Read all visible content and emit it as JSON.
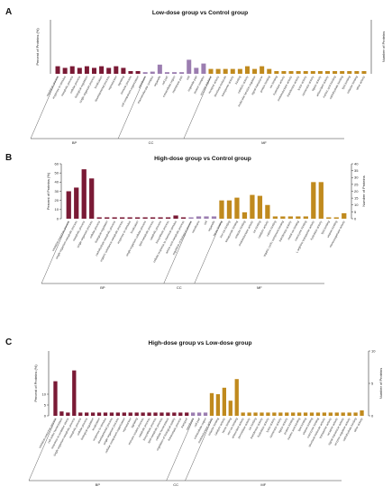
{
  "colors": {
    "BP": "#7a1a35",
    "CC": "#9b7db0",
    "MF": "#c08a1e",
    "axis": "#333333"
  },
  "panels": [
    {
      "label": "A",
      "title": "Low-dose group vs Control group"
    },
    {
      "label": "B",
      "title": "High-dose group vs Control group"
    },
    {
      "label": "C",
      "title": "High-dose group vs Low-dose group"
    }
  ],
  "chart_data": [
    {
      "type": "bar",
      "title": "Low-dose group vs Control group",
      "ylabel": "Percent of Proteins (%)",
      "y2label": "Number of Proteins",
      "groups": [
        "BP",
        "CC",
        "MF"
      ],
      "yticks": [],
      "y2ticks": [],
      "ylim": [
        0,
        100
      ],
      "categories": [
        "regulation process",
        "response to stimulus",
        "metabolic process",
        "cellular process",
        "biological regulation",
        "single-organism process",
        "localization",
        "developmental process",
        "reproduction",
        "signaling",
        "immune process",
        "cell component organization",
        "membrane",
        "macromolecular complex",
        "organelle",
        "cell part",
        "extracellular region",
        "membrane part",
        "cell",
        "organelle part",
        "protein complex",
        "enzyme regulator",
        "receptor activity",
        "structural molecule",
        "transporter activity",
        "binding",
        "catalytic activity",
        "molecular function regulator",
        "signal transducer",
        "protein binding",
        "ion binding",
        "hydrolase activity",
        "oxidoreductase activity",
        "transferase activity",
        "lyase activity",
        "isomerase activity",
        "ligase activity",
        "antioxidant activity",
        "nucleic acid binding",
        "carbohydrate binding",
        "lipid binding",
        "cofactor binding",
        "other activity"
      ],
      "category_group": [
        "BP",
        "BP",
        "BP",
        "BP",
        "BP",
        "BP",
        "BP",
        "BP",
        "BP",
        "BP",
        "BP",
        "BP",
        "CC",
        "CC",
        "CC",
        "CC",
        "CC",
        "CC",
        "CC",
        "CC",
        "CC",
        "MF",
        "MF",
        "MF",
        "MF",
        "MF",
        "MF",
        "MF",
        "MF",
        "MF",
        "MF",
        "MF",
        "MF",
        "MF",
        "MF",
        "MF",
        "MF",
        "MF",
        "MF",
        "MF",
        "MF",
        "MF",
        "MF"
      ],
      "values": [
        14,
        11,
        14,
        11,
        14,
        11,
        14,
        11,
        14,
        11,
        5,
        5,
        3,
        4,
        17,
        3,
        3,
        3,
        26,
        11,
        19,
        9,
        9,
        9,
        9,
        9,
        14,
        9,
        14,
        9,
        5,
        5,
        5,
        5,
        5,
        5,
        5,
        5,
        5,
        5,
        5,
        5,
        5
      ]
    },
    {
      "type": "bar",
      "title": "High-dose group vs Control group",
      "ylabel": "Percent of Proteins (%)",
      "y2label": "Number of Proteins",
      "groups": [
        "BP",
        "CC",
        "MF"
      ],
      "yticks": [
        0,
        10,
        20,
        30,
        40,
        50,
        60
      ],
      "y2ticks": [
        0,
        5,
        10,
        15,
        20,
        25,
        30,
        35,
        40
      ],
      "ylim": [
        0,
        60
      ],
      "categories": [
        "oxidation-reduction process",
        "single-organism metabolic process",
        "metabolic process",
        "single-organism process",
        "cellular process",
        "biological regulation",
        "carbohydrate metabolic process",
        "organic substance metabolic process",
        "response to stimulus",
        "localization",
        "single-organism cellular process",
        "lipid metabolic process",
        "catabolic process",
        "biosynthetic process",
        "cellular response to chemical stimulus",
        "amino acid metabolic process",
        "regulation of biological process",
        "membrane",
        "cell",
        "organelle",
        "heme binding",
        "iron ion binding",
        "tetrapyrrole binding",
        "cofactor binding",
        "oxidoreductase activity",
        "ion binding",
        "catalytic activity",
        "cation binding",
        "organic cyclic compound binding",
        "transferase activity",
        "metal ion binding",
        "coenzyme binding",
        "L-arginine transporter activity",
        "hydrolase activity",
        "lipid binding",
        "vitamin binding",
        "monooxygenase activity"
      ],
      "category_group": [
        "BP",
        "BP",
        "BP",
        "BP",
        "BP",
        "BP",
        "BP",
        "BP",
        "BP",
        "BP",
        "BP",
        "BP",
        "BP",
        "BP",
        "BP",
        "BP",
        "CC",
        "CC",
        "CC",
        "CC",
        "MF",
        "MF",
        "MF",
        "MF",
        "MF",
        "MF",
        "MF",
        "MF",
        "MF",
        "MF",
        "MF",
        "MF",
        "MF",
        "MF",
        "MF",
        "MF",
        "MF"
      ],
      "values": [
        30,
        34,
        54,
        44,
        1.5,
        1.5,
        1.5,
        1.5,
        1.5,
        1.5,
        1.5,
        1.5,
        1.5,
        1.5,
        3.5,
        1.5,
        1.5,
        2.5,
        2.5,
        2.5,
        20,
        20,
        23,
        7,
        26,
        25,
        15,
        2.5,
        2.5,
        2.5,
        2.5,
        2.5,
        40,
        40,
        1.5,
        1.5,
        6
      ]
    },
    {
      "type": "bar",
      "title": "High-dose group vs Low-dose group",
      "ylabel": "Percent of Proteins (%)",
      "y2label": "Number of Proteins",
      "groups": [
        "BP",
        "CC",
        "MF"
      ],
      "yticks": [
        0,
        5,
        10
      ],
      "y2ticks": [
        0,
        5,
        10
      ],
      "ylim": [
        0,
        30
      ],
      "categories": [
        "oxidation-reduction process",
        "cell redox homeostasis",
        "response to oxidative stress",
        "single-organism metabolic process",
        "metabolic process",
        "cellular process",
        "biological regulation",
        "localization",
        "response to stimulus",
        "developmental process",
        "single-organism process",
        "cellular component organization",
        "reproduction",
        "signaling",
        "immune system process",
        "catabolic process",
        "biosynthetic process",
        "lipid metabolic process",
        "cellular homeostasis",
        "regulation of biological quality",
        "homeostatic process",
        "transport",
        "membrane",
        "cell part",
        "extracellular region",
        "oxidoreductase activity",
        "cofactor binding",
        "catalytic activity",
        "heme binding",
        "iron ion binding",
        "antioxidant activity",
        "peroxidase activity",
        "ion binding",
        "transferase activity",
        "hydrolase activity",
        "lyase activity",
        "isomerase activity",
        "ligase activity",
        "protein binding",
        "nucleic acid binding",
        "lipid binding",
        "vitamin binding",
        "coenzyme binding",
        "structural molecule activity",
        "transporter activity",
        "receptor activity",
        "signal transducer activity",
        "enzyme regulator activity",
        "carbohydrate binding",
        "other activity"
      ],
      "category_group": [
        "BP",
        "BP",
        "BP",
        "BP",
        "BP",
        "BP",
        "BP",
        "BP",
        "BP",
        "BP",
        "BP",
        "BP",
        "BP",
        "BP",
        "BP",
        "BP",
        "BP",
        "BP",
        "BP",
        "BP",
        "BP",
        "BP",
        "CC",
        "CC",
        "CC",
        "MF",
        "MF",
        "MF",
        "MF",
        "MF",
        "MF",
        "MF",
        "MF",
        "MF",
        "MF",
        "MF",
        "MF",
        "MF",
        "MF",
        "MF",
        "MF",
        "MF",
        "MF",
        "MF",
        "MF",
        "MF",
        "MF",
        "MF",
        "MF",
        "MF"
      ],
      "values": [
        16,
        2,
        1.5,
        21,
        1.5,
        1.5,
        1.5,
        1.5,
        1.5,
        1.5,
        1.5,
        1.5,
        1.5,
        1.5,
        1.5,
        1.5,
        1.5,
        1.5,
        1.5,
        1.5,
        1.5,
        1.5,
        1.5,
        1.5,
        1.5,
        10.5,
        10,
        13,
        7,
        17,
        1.5,
        1.5,
        1.5,
        1.5,
        1.5,
        1.5,
        1.5,
        1.5,
        1.5,
        1.5,
        1.5,
        1.5,
        1.5,
        1.5,
        1.5,
        1.5,
        1.5,
        1.5,
        1.5,
        2.5
      ]
    }
  ]
}
